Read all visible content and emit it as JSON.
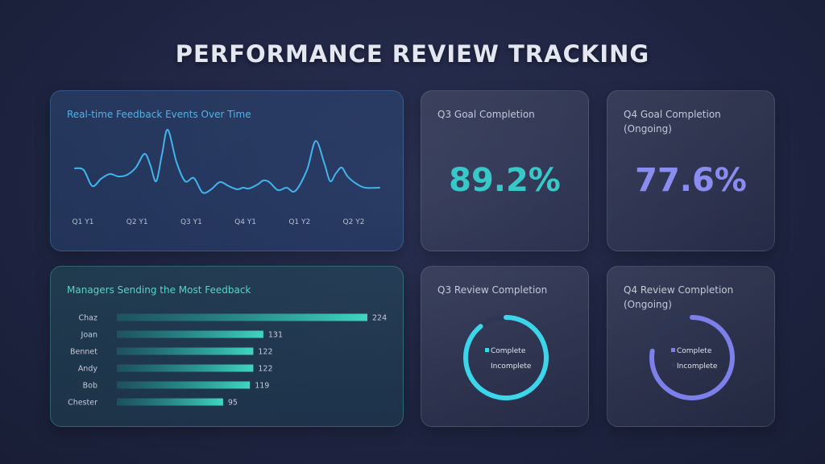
{
  "page_title": "PERFORMANCE REVIEW TRACKING",
  "colors": {
    "line": "#40b4ec",
    "bar_start": "#1f9f9a",
    "bar_end": "#3fd6c0",
    "teal_ring": "#3cd6ea",
    "violet_ring": "#7d80ea",
    "ring_track": "#2c3656"
  },
  "chart_data": [
    {
      "type": "line",
      "title": "Real-time Feedback Events Over Time",
      "x_ticks": [
        "Q1 Y1",
        "Q2 Y1",
        "Q3 Y1",
        "Q4 Y1",
        "Q1 Y2",
        "Q2 Y2"
      ],
      "x": [
        0,
        0.3,
        0.6,
        0.9,
        1.2,
        1.5,
        1.8,
        2.1,
        2.4,
        2.6,
        2.8,
        3.0,
        3.2,
        3.5,
        3.8,
        4.1,
        4.4,
        4.7,
        5.0,
        5.3,
        5.6,
        5.8,
        6.0,
        6.3,
        6.5,
        6.7,
        7.0,
        7.3,
        7.6,
        8.0,
        8.3,
        8.6,
        8.8,
        9.0,
        9.2,
        9.4,
        9.7,
        10.0,
        10.5
      ],
      "values": [
        44,
        42,
        22,
        31,
        37,
        34,
        36,
        45,
        62,
        48,
        28,
        61,
        92,
        52,
        28,
        32,
        14,
        18,
        27,
        22,
        18,
        20,
        19,
        24,
        29,
        27,
        17,
        20,
        16,
        42,
        78,
        50,
        28,
        38,
        45,
        34,
        25,
        20,
        20
      ],
      "ylim": [
        0,
        100
      ]
    },
    {
      "type": "bar",
      "orientation": "horizontal",
      "title": "Managers Sending the Most Feedback",
      "categories": [
        "Chaz",
        "Joan",
        "Bennet",
        "Andy",
        "Bob",
        "Chester"
      ],
      "values": [
        224,
        131,
        122,
        122,
        119,
        95
      ],
      "xlim": [
        0,
        224
      ]
    },
    {
      "type": "pie",
      "title": "Q3 Review Completion",
      "labels": [
        "Complete",
        "Incomplete"
      ],
      "values": [
        89.2,
        10.8
      ]
    },
    {
      "type": "pie",
      "title": "Q4 Review Completion (Ongoing)",
      "labels": [
        "Complete",
        "Incomplete"
      ],
      "values": [
        77.6,
        22.4
      ]
    }
  ],
  "kpis": {
    "q3_goal": {
      "title": "Q3 Goal Completion",
      "value": "89.2%"
    },
    "q4_goal": {
      "title": "Q4 Goal Completion (Ongoing)",
      "value": "77.6%"
    }
  }
}
